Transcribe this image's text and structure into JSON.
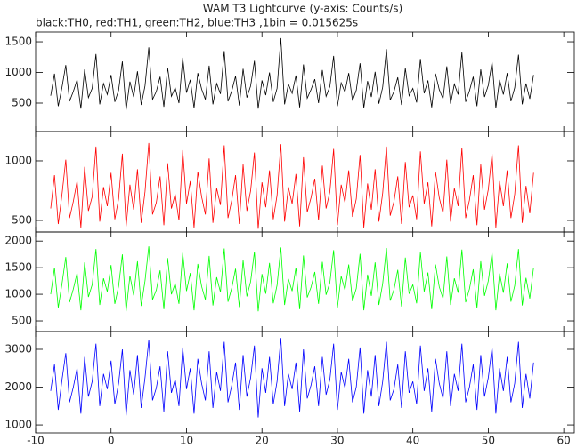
{
  "chart_data": {
    "type": "line",
    "title": "WAM T3 Lightcurve (y-axis: Counts/s)",
    "subtitle": "black:TH0, red:TH1, green:TH2, blue:TH3 ,1bin = 0.015625s",
    "xlim": [
      -10,
      61.4
    ],
    "xticks": [
      -10,
      0,
      10,
      20,
      30,
      40,
      50,
      60
    ],
    "x": [
      -8,
      -7.5,
      -7,
      -6.5,
      -6,
      -5.5,
      -5,
      -4.5,
      -4,
      -3.5,
      -3,
      -2.5,
      -2,
      -1.5,
      -1,
      -0.5,
      0,
      0.5,
      1,
      1.5,
      2,
      2.5,
      3,
      3.5,
      4,
      4.5,
      5,
      5.5,
      6,
      6.5,
      7,
      7.5,
      8,
      8.5,
      9,
      9.5,
      10,
      10.5,
      11,
      11.5,
      12,
      12.5,
      13,
      13.5,
      14,
      14.5,
      15,
      15.5,
      16,
      16.5,
      17,
      17.5,
      18,
      18.5,
      19,
      19.5,
      20,
      20.5,
      21,
      21.5,
      22,
      22.5,
      23,
      23.5,
      24,
      24.5,
      25,
      25.5,
      26,
      26.5,
      27,
      27.5,
      28,
      28.5,
      29,
      29.5,
      30,
      30.5,
      31,
      31.5,
      32,
      32.5,
      33,
      33.5,
      34,
      34.5,
      35,
      35.5,
      36,
      36.5,
      37,
      37.5,
      38,
      38.5,
      39,
      39.5,
      40,
      40.5,
      41,
      41.5,
      42,
      42.5,
      43,
      43.5,
      44,
      44.5,
      45,
      45.5,
      46,
      46.5,
      47,
      47.5,
      48,
      48.5,
      49,
      49.5,
      50,
      50.5,
      51,
      51.5,
      52,
      52.5,
      53,
      53.5,
      54,
      54.5,
      55,
      55.5,
      56
    ],
    "series": [
      {
        "color": "#000000",
        "ylim": [
          36,
          1660
        ],
        "yticks": [
          500,
          1000,
          1500
        ],
        "values": [
          620,
          980,
          450,
          760,
          1120,
          530,
          690,
          880,
          410,
          1050,
          590,
          740,
          1300,
          480,
          820,
          640,
          960,
          520,
          710,
          1180,
          390,
          850,
          600,
          1020,
          470,
          780,
          1410,
          560,
          690,
          930,
          440,
          1080,
          610,
          750,
          500,
          1240,
          670,
          880,
          420,
          990,
          730,
          560,
          1110,
          480,
          820,
          650,
          1350,
          530,
          700,
          940,
          460,
          1060,
          590,
          780,
          1190,
          410,
          870,
          630,
          1000,
          520,
          740,
          1560,
          480,
          810,
          660,
          950,
          430,
          1130,
          580,
          720,
          890,
          500,
          1040,
          610,
          770,
          1270,
          450,
          830,
          680,
          990,
          540,
          710,
          1150,
          420,
          860,
          600,
          1010,
          490,
          760,
          1380,
          550,
          690,
          920,
          470,
          1070,
          620,
          740,
          510,
          1220,
          660,
          870,
          430,
          980,
          720,
          570,
          1100,
          490,
          810,
          640,
          1330,
          520,
          700,
          930,
          450,
          1050,
          600,
          790,
          1170,
          420,
          880,
          640,
          990,
          530,
          750,
          1290,
          480,
          820,
          570,
          960
        ]
      },
      {
        "color": "#ff0000",
        "ylim": [
          403,
          1246
        ],
        "yticks": [
          500,
          1000
        ],
        "values": [
          600,
          880,
          470,
          720,
          1010,
          520,
          660,
          830,
          440,
          950,
          580,
          700,
          1120,
          490,
          780,
          620,
          900,
          510,
          680,
          1060,
          450,
          800,
          590,
          930,
          480,
          740,
          1150,
          550,
          650,
          870,
          460,
          980,
          600,
          720,
          500,
          1090,
          640,
          830,
          440,
          910,
          700,
          550,
          1020,
          480,
          770,
          630,
          1130,
          520,
          670,
          880,
          470,
          970,
          580,
          750,
          1070,
          430,
          820,
          610,
          920,
          510,
          710,
          1140,
          490,
          780,
          640,
          890,
          450,
          1030,
          570,
          690,
          850,
          500,
          960,
          600,
          740,
          1100,
          460,
          800,
          650,
          920,
          530,
          680,
          1050,
          440,
          810,
          590,
          930,
          490,
          730,
          1120,
          540,
          660,
          870,
          470,
          990,
          610,
          710,
          510,
          1080,
          640,
          820,
          450,
          910,
          690,
          560,
          1010,
          490,
          770,
          620,
          1110,
          520,
          670,
          880,
          460,
          970,
          590,
          760,
          1060,
          440,
          830,
          620,
          920,
          520,
          720,
          1130,
          480,
          790,
          560,
          900
        ]
      },
      {
        "color": "#00ff00",
        "ylim": [
          300,
          2170
        ],
        "yticks": [
          500,
          1000,
          1500,
          2000
        ],
        "values": [
          1000,
          1500,
          750,
          1200,
          1700,
          850,
          1100,
          1400,
          700,
          1600,
          950,
          1180,
          1850,
          800,
          1300,
          1050,
          1550,
          820,
          1150,
          1750,
          680,
          1350,
          980,
          1620,
          780,
          1250,
          1900,
          900,
          1080,
          1450,
          720,
          1680,
          1000,
          1200,
          820,
          1780,
          1060,
          1400,
          700,
          1570,
          1150,
          900,
          1720,
          790,
          1320,
          1040,
          1860,
          860,
          1120,
          1480,
          760,
          1640,
          960,
          1240,
          1800,
          680,
          1380,
          1010,
          1590,
          830,
          1170,
          1880,
          800,
          1290,
          1060,
          1500,
          720,
          1730,
          940,
          1130,
          1420,
          820,
          1610,
          990,
          1220,
          1830,
          750,
          1340,
          1080,
          1560,
          870,
          1110,
          1760,
          700,
          1370,
          970,
          1600,
          800,
          1200,
          1870,
          880,
          1090,
          1460,
          770,
          1690,
          1010,
          1180,
          830,
          1790,
          1050,
          1410,
          720,
          1560,
          1140,
          920,
          1710,
          800,
          1300,
          1030,
          1840,
          850,
          1100,
          1470,
          740,
          1620,
          970,
          1250,
          1780,
          700,
          1390,
          1030,
          1580,
          860,
          1160,
          1850,
          790,
          1310,
          920,
          1500
        ]
      },
      {
        "color": "#0000ff",
        "ylim": [
          790,
          3470
        ],
        "yticks": [
          1000,
          2000,
          3000
        ],
        "values": [
          1900,
          2600,
          1400,
          2200,
          2900,
          1600,
          2000,
          2500,
          1300,
          2800,
          1750,
          2150,
          3150,
          1500,
          2350,
          1950,
          2700,
          1550,
          2100,
          3000,
          1250,
          2450,
          1800,
          2850,
          1450,
          2250,
          3250,
          1650,
          1980,
          2550,
          1350,
          2950,
          1850,
          2200,
          1500,
          3050,
          1950,
          2500,
          1300,
          2750,
          2100,
          1650,
          2950,
          1450,
          2400,
          1900,
          3200,
          1600,
          2050,
          2650,
          1400,
          2850,
          1750,
          2250,
          3100,
          1200,
          2500,
          1850,
          2800,
          1550,
          2150,
          3300,
          1500,
          2350,
          1950,
          2650,
          1350,
          3000,
          1700,
          2050,
          2550,
          1500,
          2800,
          1800,
          2200,
          3150,
          1400,
          2400,
          1980,
          2750,
          1600,
          2000,
          3050,
          1300,
          2450,
          1750,
          2850,
          1500,
          2150,
          3200,
          1650,
          1950,
          2600,
          1450,
          2950,
          1850,
          2150,
          1550,
          3100,
          1900,
          2500,
          1350,
          2750,
          2100,
          1700,
          2950,
          1500,
          2350,
          1900,
          3150,
          1600,
          2000,
          2600,
          1400,
          2850,
          1750,
          2250,
          3050,
          1300,
          2500,
          1900,
          2800,
          1600,
          2100,
          3200,
          1450,
          2350,
          1700,
          2650
        ]
      }
    ]
  }
}
